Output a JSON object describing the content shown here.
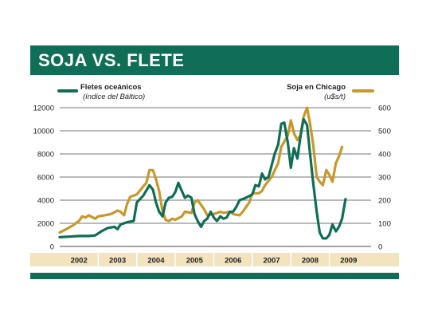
{
  "title": "SOJA VS. FLETE",
  "colors": {
    "header": "#0f6e55",
    "flete": "#0f6e55",
    "soja": "#c9982a",
    "band": "#f3e3bf",
    "grid": "#444444"
  },
  "chart_data": {
    "type": "line",
    "x_unit": "year",
    "grid": true,
    "years": [
      "2002",
      "2003",
      "2004",
      "2005",
      "2006",
      "2007",
      "2008",
      "2009"
    ],
    "left_axis": {
      "ylim": [
        0,
        12000
      ],
      "ticks": [
        "0",
        "2000",
        "4000",
        "6000",
        "8000",
        "10000",
        "12000"
      ]
    },
    "right_axis": {
      "ylim": [
        0,
        600
      ],
      "ticks": [
        "0",
        "100",
        "200",
        "300",
        "400",
        "500",
        "600"
      ]
    },
    "series": [
      {
        "name": "Fletes oceánicos",
        "subtitle": "(índice del Báltico)",
        "axis": "left",
        "legend_position": "top-left",
        "points": [
          [
            2002.0,
            800
          ],
          [
            2002.25,
            850
          ],
          [
            2002.5,
            900
          ],
          [
            2002.75,
            900
          ],
          [
            2002.92,
            950
          ],
          [
            2003.08,
            1300
          ],
          [
            2003.25,
            1600
          ],
          [
            2003.42,
            1700
          ],
          [
            2003.5,
            1500
          ],
          [
            2003.58,
            1900
          ],
          [
            2003.75,
            2100
          ],
          [
            2003.92,
            2200
          ],
          [
            2004.0,
            3800
          ],
          [
            2004.17,
            4400
          ],
          [
            2004.33,
            5300
          ],
          [
            2004.42,
            4900
          ],
          [
            2004.5,
            3800
          ],
          [
            2004.58,
            3000
          ],
          [
            2004.67,
            2600
          ],
          [
            2004.75,
            3800
          ],
          [
            2004.83,
            4200
          ],
          [
            2004.92,
            4300
          ],
          [
            2005.0,
            4700
          ],
          [
            2005.08,
            5500
          ],
          [
            2005.17,
            4800
          ],
          [
            2005.25,
            4200
          ],
          [
            2005.33,
            4400
          ],
          [
            2005.42,
            4200
          ],
          [
            2005.5,
            2800
          ],
          [
            2005.58,
            2200
          ],
          [
            2005.67,
            1700
          ],
          [
            2005.75,
            2200
          ],
          [
            2005.83,
            2400
          ],
          [
            2005.92,
            3000
          ],
          [
            2006.0,
            2500
          ],
          [
            2006.08,
            2200
          ],
          [
            2006.17,
            2600
          ],
          [
            2006.25,
            2400
          ],
          [
            2006.33,
            2500
          ],
          [
            2006.42,
            3000
          ],
          [
            2006.5,
            3000
          ],
          [
            2006.58,
            3400
          ],
          [
            2006.67,
            4000
          ],
          [
            2006.83,
            4200
          ],
          [
            2007.0,
            4500
          ],
          [
            2007.08,
            5300
          ],
          [
            2007.17,
            5200
          ],
          [
            2007.25,
            6300
          ],
          [
            2007.33,
            5800
          ],
          [
            2007.42,
            6000
          ],
          [
            2007.5,
            7000
          ],
          [
            2007.58,
            8000
          ],
          [
            2007.67,
            8800
          ],
          [
            2007.75,
            10600
          ],
          [
            2007.83,
            10700
          ],
          [
            2007.92,
            9000
          ],
          [
            2008.0,
            6800
          ],
          [
            2008.08,
            8500
          ],
          [
            2008.17,
            7600
          ],
          [
            2008.25,
            9500
          ],
          [
            2008.33,
            11000
          ],
          [
            2008.42,
            10500
          ],
          [
            2008.5,
            8000
          ],
          [
            2008.58,
            5500
          ],
          [
            2008.67,
            3000
          ],
          [
            2008.75,
            1200
          ],
          [
            2008.83,
            700
          ],
          [
            2008.92,
            700
          ],
          [
            2009.0,
            1000
          ],
          [
            2009.08,
            1900
          ],
          [
            2009.17,
            1300
          ],
          [
            2009.25,
            1700
          ],
          [
            2009.33,
            2400
          ],
          [
            2009.42,
            4100
          ]
        ]
      },
      {
        "name": "Soja en Chicago",
        "subtitle": "(u$s/t)",
        "axis": "right",
        "legend_position": "top-right",
        "points": [
          [
            2002.0,
            60
          ],
          [
            2002.17,
            75
          ],
          [
            2002.33,
            90
          ],
          [
            2002.5,
            110
          ],
          [
            2002.58,
            130
          ],
          [
            2002.67,
            125
          ],
          [
            2002.75,
            135
          ],
          [
            2002.92,
            120
          ],
          [
            2003.0,
            130
          ],
          [
            2003.17,
            135
          ],
          [
            2003.33,
            140
          ],
          [
            2003.5,
            155
          ],
          [
            2003.58,
            150
          ],
          [
            2003.67,
            135
          ],
          [
            2003.75,
            185
          ],
          [
            2003.83,
            215
          ],
          [
            2004.0,
            225
          ],
          [
            2004.17,
            260
          ],
          [
            2004.25,
            275
          ],
          [
            2004.33,
            330
          ],
          [
            2004.42,
            330
          ],
          [
            2004.5,
            290
          ],
          [
            2004.58,
            240
          ],
          [
            2004.67,
            150
          ],
          [
            2004.75,
            115
          ],
          [
            2004.83,
            110
          ],
          [
            2004.92,
            120
          ],
          [
            2005.0,
            115
          ],
          [
            2005.17,
            130
          ],
          [
            2005.25,
            150
          ],
          [
            2005.42,
            145
          ],
          [
            2005.5,
            190
          ],
          [
            2005.58,
            200
          ],
          [
            2005.67,
            180
          ],
          [
            2005.75,
            160
          ],
          [
            2005.83,
            135
          ],
          [
            2006.0,
            140
          ],
          [
            2006.17,
            150
          ],
          [
            2006.25,
            145
          ],
          [
            2006.42,
            150
          ],
          [
            2006.5,
            140
          ],
          [
            2006.67,
            135
          ],
          [
            2006.75,
            150
          ],
          [
            2006.92,
            190
          ],
          [
            2007.0,
            230
          ],
          [
            2007.17,
            230
          ],
          [
            2007.25,
            240
          ],
          [
            2007.33,
            265
          ],
          [
            2007.5,
            300
          ],
          [
            2007.67,
            360
          ],
          [
            2007.75,
            430
          ],
          [
            2007.92,
            480
          ],
          [
            2008.0,
            545
          ],
          [
            2008.08,
            490
          ],
          [
            2008.17,
            460
          ],
          [
            2008.25,
            480
          ],
          [
            2008.33,
            560
          ],
          [
            2008.42,
            600
          ],
          [
            2008.5,
            530
          ],
          [
            2008.58,
            440
          ],
          [
            2008.67,
            300
          ],
          [
            2008.75,
            280
          ],
          [
            2008.83,
            265
          ],
          [
            2008.92,
            330
          ],
          [
            2009.0,
            310
          ],
          [
            2009.08,
            280
          ],
          [
            2009.17,
            360
          ],
          [
            2009.25,
            390
          ],
          [
            2009.33,
            430
          ]
        ]
      }
    ]
  }
}
